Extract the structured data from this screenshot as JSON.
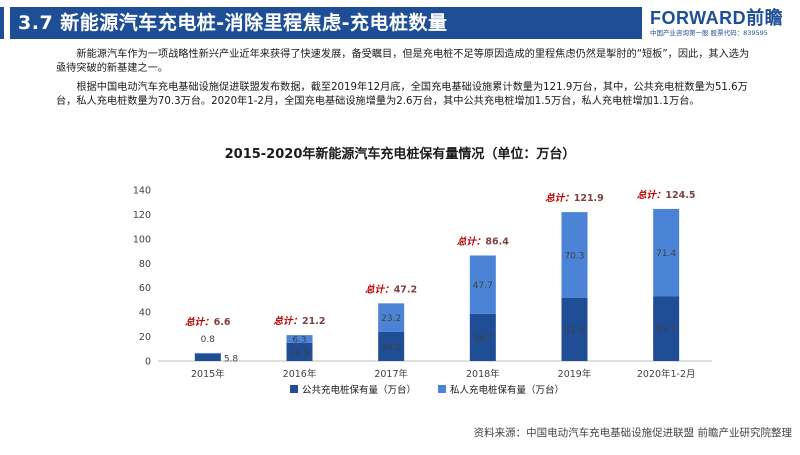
{
  "header": {
    "title": "3.7  新能源汽车充电桩-消除里程焦虑-充电桩数量",
    "logo": "FORWARD前瞻",
    "logo_sub": "中国产业咨询第一股  股票代码：839595"
  },
  "intro": {
    "p1": "新能源汽车作为一项战略性新兴产业近年来获得了快速发展，备受瞩目，但是充电桩不足等原因造成的里程焦虑仍然是掣肘的“短板”，因此，其入选为亟待突破的新基建之一。",
    "p2": "根据中国电动汽车充电基础设施促进联盟发布数据，截至2019年12月底，全国充电基础设施累计数量为121.9万台，其中，公共充电桩数量为51.6万台，私人充电桩数量为70.3万台。2020年1-2月，全国充电基础设施增量为2.6万台，其中公共充电桩增加1.5万台，私人充电桩增加1.1万台。"
  },
  "source": "资料来源：中国电动汽车充电基础设施促进联盟 前瞻产业研究院整理",
  "colors": {
    "header": "#1e4f96",
    "public": "#1f4e96",
    "private": "#4b84d6",
    "total_prefix": "#c00000"
  },
  "chart_data": {
    "type": "bar",
    "stacked": true,
    "title": "2015-2020年新能源汽车充电桩保有量情况（单位：万台）",
    "categories": [
      "2015年",
      "2016年",
      "2017年",
      "2018年",
      "2019年",
      "2020年1-2月"
    ],
    "series": [
      {
        "name": "公共充电桩保有量（万台）",
        "values": [
          5.8,
          14.9,
          24.0,
          38.7,
          51.6,
          53.1
        ]
      },
      {
        "name": "私人充电桩保有量（万台）",
        "values": [
          0.8,
          6.3,
          23.2,
          47.7,
          70.3,
          71.4
        ]
      }
    ],
    "total_label_prefix": "总计：",
    "totals": [
      6.6,
      21.2,
      47.2,
      86.4,
      121.9,
      124.5
    ],
    "ylim": [
      0,
      140
    ],
    "yticks": [
      0,
      20,
      40,
      60,
      80,
      100,
      120,
      140
    ],
    "xlabel": "",
    "ylabel": "",
    "grid": false,
    "legend": "bottom"
  }
}
